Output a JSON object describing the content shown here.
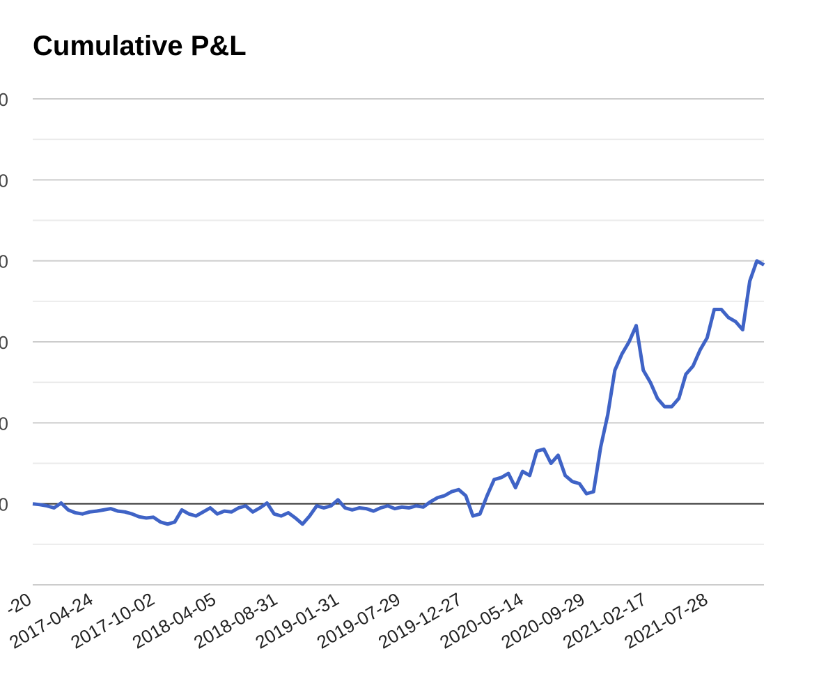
{
  "chart_data": {
    "type": "line",
    "title": "Cumulative P&L",
    "xlabel": "",
    "ylabel": "",
    "ylim": [
      -2,
      10
    ],
    "grid": true,
    "legend": "none",
    "y_tick_labels": [
      "0",
      "0",
      "0",
      "0",
      "0",
      "0"
    ],
    "x_tick_labels": [
      "-20",
      "2017-04-24",
      "2017-10-02",
      "2018-04-05",
      "2018-08-31",
      "2019-01-31",
      "2019-07-29",
      "2019-12-27",
      "2020-05-14",
      "2020-09-29",
      "2021-02-17",
      "2021-07-28"
    ],
    "line_color": "#3f63c6",
    "series": [
      {
        "values": [
          0,
          -0.02,
          -0.05,
          -0.1,
          0.02,
          -0.15,
          -0.22,
          -0.25,
          -0.2,
          -0.18,
          -0.15,
          -0.12,
          -0.18,
          -0.2,
          -0.25,
          -0.32,
          -0.35,
          -0.33,
          -0.45,
          -0.5,
          -0.45,
          -0.15,
          -0.25,
          -0.3,
          -0.2,
          -0.1,
          -0.25,
          -0.18,
          -0.2,
          -0.1,
          -0.05,
          -0.2,
          -0.1,
          0.02,
          -0.25,
          -0.3,
          -0.22,
          -0.35,
          -0.5,
          -0.3,
          -0.05,
          -0.1,
          -0.05,
          0.1,
          -0.1,
          -0.15,
          -0.1,
          -0.12,
          -0.18,
          -0.1,
          -0.05,
          -0.12,
          -0.08,
          -0.1,
          -0.05,
          -0.08,
          0.05,
          0.15,
          0.2,
          0.3,
          0.35,
          0.2,
          -0.3,
          -0.25,
          0.2,
          0.6,
          0.65,
          0.75,
          0.4,
          0.8,
          0.7,
          1.3,
          1.35,
          1.0,
          1.2,
          0.7,
          0.55,
          0.5,
          0.25,
          0.3,
          1.4,
          2.2,
          3.3,
          3.7,
          4.0,
          4.4,
          3.3,
          3.0,
          2.6,
          2.4,
          2.4,
          2.6,
          3.2,
          3.4,
          3.8,
          4.1,
          4.8,
          4.8,
          4.6,
          4.5,
          4.3,
          5.5,
          6.0,
          5.9
        ]
      }
    ]
  }
}
